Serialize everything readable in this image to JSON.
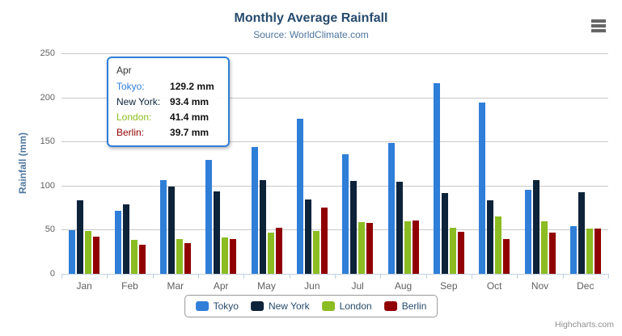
{
  "header": {
    "title": "Monthly Average Rainfall",
    "subtitle": "Source: WorldClimate.com"
  },
  "chart_data": {
    "type": "bar",
    "title": "Monthly Average Rainfall",
    "subtitle": "Source: WorldClimate.com",
    "categories": [
      "Jan",
      "Feb",
      "Mar",
      "Apr",
      "May",
      "Jun",
      "Jul",
      "Aug",
      "Sep",
      "Oct",
      "Nov",
      "Dec"
    ],
    "series": [
      {
        "name": "Tokyo",
        "color": "#2f7ed8",
        "values": [
          49.9,
          71.5,
          106.4,
          129.2,
          144.0,
          176.0,
          135.6,
          148.5,
          216.4,
          194.1,
          95.6,
          54.4
        ]
      },
      {
        "name": "New York",
        "color": "#0d233a",
        "values": [
          83.6,
          78.8,
          98.5,
          93.4,
          106.0,
          84.5,
          105.0,
          104.3,
          91.2,
          83.5,
          106.6,
          92.3
        ]
      },
      {
        "name": "London",
        "color": "#8bbc21",
        "values": [
          48.9,
          38.8,
          39.3,
          41.4,
          47.0,
          48.3,
          59.0,
          59.6,
          52.4,
          65.2,
          59.3,
          51.2
        ]
      },
      {
        "name": "Berlin",
        "color": "#910000",
        "values": [
          42.4,
          33.2,
          34.5,
          39.7,
          52.6,
          75.5,
          57.4,
          60.4,
          47.6,
          39.1,
          46.8,
          51.1
        ]
      }
    ],
    "xlabel": "",
    "ylabel": "Rainfall (mm)",
    "ylim": [
      0,
      250
    ],
    "ytick_interval": 50,
    "value_suffix": " mm",
    "grid": true,
    "legend_position": "bottom"
  },
  "tooltip": {
    "header": "Apr",
    "border_color": "#2f7ed8",
    "rows": [
      {
        "label": "Tokyo:",
        "value": "129.2 mm",
        "color": "#2f7ed8"
      },
      {
        "label": "New York:",
        "value": "93.4 mm",
        "color": "#0d233a"
      },
      {
        "label": "London:",
        "value": "41.4 mm",
        "color": "#8bbc21"
      },
      {
        "label": "Berlin:",
        "value": "39.7 mm",
        "color": "#910000"
      }
    ]
  },
  "credits": {
    "label": "Highcharts.com"
  }
}
